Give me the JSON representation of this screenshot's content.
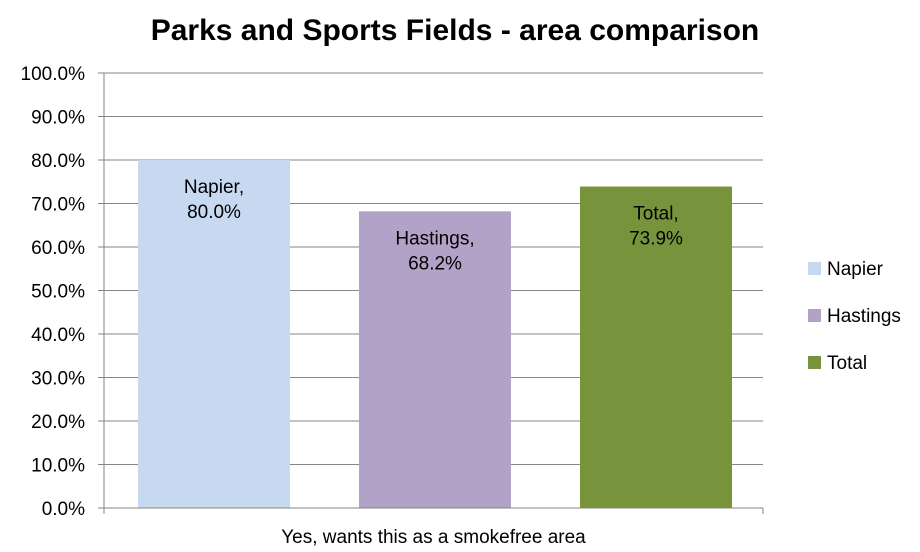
{
  "chart_data": {
    "type": "bar",
    "title": "Parks and Sports Fields - area comparison",
    "xlabel": "",
    "ylabel": "",
    "categories": [
      "Yes, wants this as a smokefree area"
    ],
    "series": [
      {
        "name": "Napier",
        "values": [
          80.0
        ],
        "label_lines": [
          "Napier,",
          "80.0%"
        ],
        "color": "#c6d9f1"
      },
      {
        "name": "Hastings",
        "values": [
          68.2
        ],
        "label_lines": [
          "Hastings,",
          "68.2%"
        ],
        "color": "#b3a2c7"
      },
      {
        "name": "Total",
        "values": [
          73.9
        ],
        "label_lines": [
          "Total,",
          "73.9%"
        ],
        "color": "#77933c"
      }
    ],
    "ylim": [
      0,
      100
    ],
    "yticks": [
      0,
      10,
      20,
      30,
      40,
      50,
      60,
      70,
      80,
      90,
      100
    ],
    "ytick_labels": [
      "0.0%",
      "10.0%",
      "20.0%",
      "30.0%",
      "40.0%",
      "50.0%",
      "60.0%",
      "70.0%",
      "80.0%",
      "90.0%",
      "100.0%"
    ],
    "grid": true,
    "legend": {
      "position": "right",
      "entries": [
        "Napier",
        "Hastings",
        "Total"
      ]
    }
  },
  "colors": {
    "gridline": "#868686",
    "axis": "#868686"
  }
}
